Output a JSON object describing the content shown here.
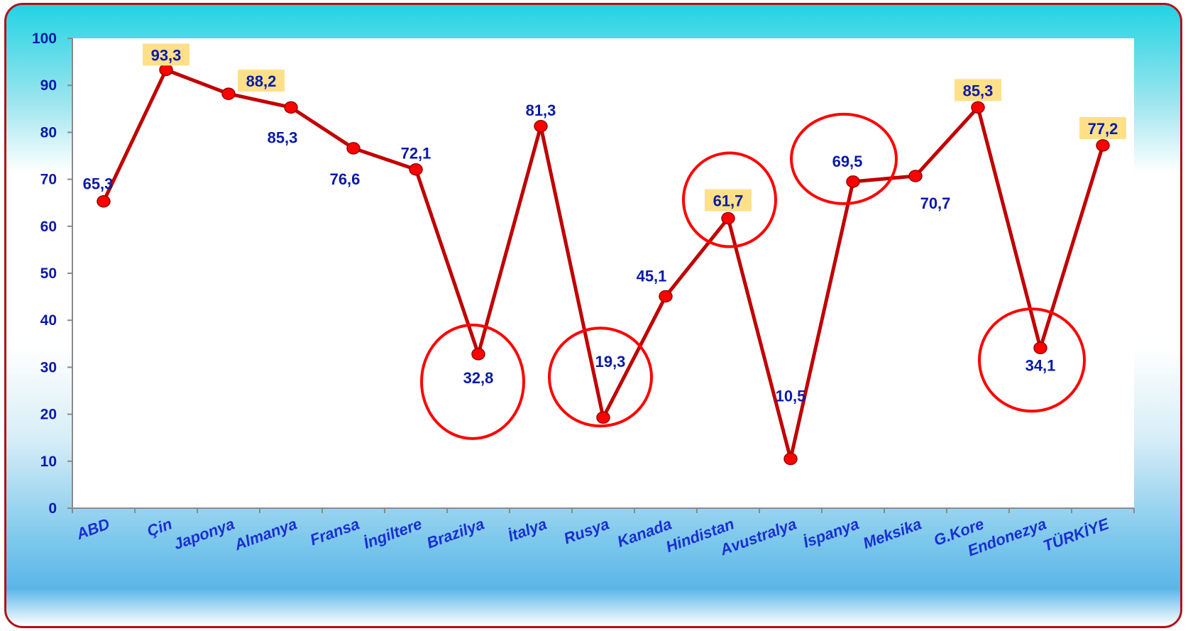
{
  "colors": {
    "line": "#c00000",
    "marker": "#ff0000",
    "highlight_box": "#ffe08a",
    "label_text": "#0a1aa8",
    "circle": "#ff0000",
    "frame_border": "#b0121b"
  },
  "chart_data": {
    "type": "line",
    "title": "",
    "xlabel": "",
    "ylabel": "",
    "ylim": [
      0,
      100
    ],
    "yticks": [
      "0",
      "10",
      "20",
      "30",
      "40",
      "50",
      "60",
      "70",
      "80",
      "90",
      "100"
    ],
    "grid": false,
    "categories": [
      "ABD",
      "Çin",
      "Japonya",
      "Almanya",
      "Fransa",
      "İngiltere",
      "Brazilya",
      "İtalya",
      "Rusya",
      "Kanada",
      "Hindistan",
      "Avustralya",
      "İspanya",
      "Meksika",
      "G.Kore",
      "Endonezya",
      "TÜRKİYE"
    ],
    "series": [
      {
        "values": [
          65.3,
          93.3,
          88.2,
          85.3,
          76.6,
          72.1,
          32.8,
          81.3,
          19.3,
          45.1,
          61.7,
          10.5,
          69.5,
          70.7,
          85.3,
          34.1,
          77.2
        ]
      }
    ],
    "data_labels": [
      "65,3",
      "93,3",
      "88,2",
      "85,3",
      "76,6",
      "72,1",
      "32,8",
      "81,3",
      "19,3",
      "45,1",
      "61,7",
      "10,5",
      "69,5",
      "70,7",
      "85,3",
      "34,1",
      "77,2"
    ],
    "highlighted_labels": [
      "Çin",
      "Japonya",
      "Hindistan",
      "G.Kore",
      "TÜRKİYE"
    ],
    "circled_points": [
      "Brazilya",
      "Rusya",
      "Hindistan",
      "İspanya",
      "Endonezya"
    ]
  }
}
